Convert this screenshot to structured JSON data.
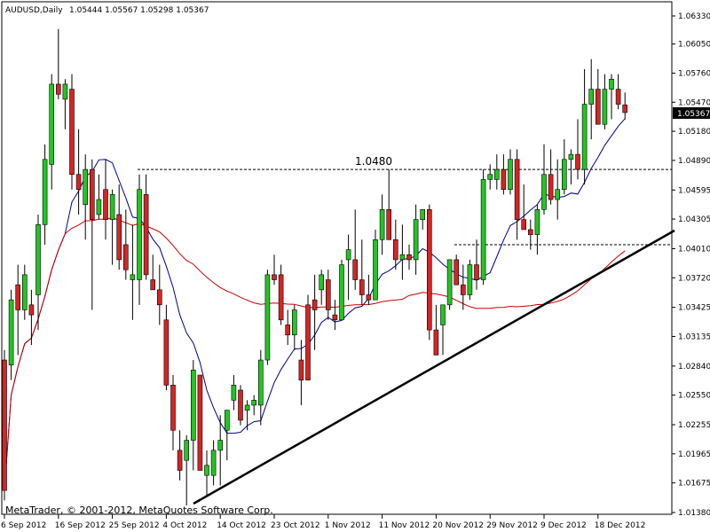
{
  "header": {
    "symbol": "AUDUSD,Daily",
    "ohlc": "1.05444 1.05567 1.05298 1.05367"
  },
  "footer": {
    "copyright": "MetaTrader, © 2001-2012, MetaQuotes Software Corp."
  },
  "colors": {
    "bull_body": "#22c522",
    "bear_body": "#d62424",
    "wick": "#000000",
    "ma_fast": "#00008b",
    "ma_slow": "#c80000",
    "trendline": "#000000",
    "current_price_tag": "#000000"
  },
  "chart_data": {
    "type": "candlestick",
    "y_ticks": [
      "1.06330",
      "1.06050",
      "1.05760",
      "1.05470",
      "1.05180",
      "1.04890",
      "1.04595",
      "1.04305",
      "1.04010",
      "1.03720",
      "1.03425",
      "1.03135",
      "1.02840",
      "1.02550",
      "1.02255",
      "1.01965",
      "1.01675",
      "1.01380"
    ],
    "x_ticks": [
      "6 Sep 2012",
      "16 Sep 2012",
      "25 Sep 2012",
      "4 Oct 2012",
      "14 Oct 2012",
      "23 Oct 2012",
      "1 Nov 2012",
      "11 Nov 2012",
      "20 Nov 2012",
      "29 Nov 2012",
      "9 Dec 2012",
      "18 Dec 2012"
    ],
    "current_price": "1.05367",
    "annotation": "1.0480",
    "ylim": [
      1.0138,
      1.0648
    ],
    "candles": [
      [
        1.029,
        1.03,
        1.015,
        1.016
      ],
      [
        1.0285,
        1.036,
        1.027,
        1.035
      ],
      [
        1.0365,
        1.0385,
        1.0295,
        1.034
      ],
      [
        1.034,
        1.0385,
        1.033,
        1.0375
      ],
      [
        1.0345,
        1.036,
        1.0305,
        1.0335
      ],
      [
        1.0355,
        1.0435,
        1.032,
        1.0425
      ],
      [
        1.0425,
        1.0505,
        1.0405,
        1.049
      ],
      [
        1.0485,
        1.0575,
        1.046,
        1.0565
      ],
      [
        1.0565,
        1.062,
        1.055,
        1.0555
      ],
      [
        1.055,
        1.057,
        1.052,
        1.0565
      ],
      [
        1.056,
        1.0575,
        1.046,
        1.0475
      ],
      [
        1.0475,
        1.052,
        1.0435,
        1.046
      ],
      [
        1.0445,
        1.0495,
        1.041,
        1.048
      ],
      [
        1.048,
        1.049,
        1.034,
        1.043
      ],
      [
        1.0435,
        1.0475,
        1.043,
        1.045
      ],
      [
        1.046,
        1.049,
        1.041,
        1.043
      ],
      [
        1.043,
        1.046,
        1.0385,
        1.0455
      ],
      [
        1.0435,
        1.0465,
        1.038,
        1.039
      ],
      [
        1.0405,
        1.044,
        1.037,
        1.038
      ],
      [
        1.037,
        1.0425,
        1.033,
        1.0375
      ],
      [
        1.037,
        1.0475,
        1.0345,
        1.046
      ],
      [
        1.0455,
        1.0475,
        1.037,
        1.0375
      ],
      [
        1.037,
        1.0395,
        1.036,
        1.036
      ],
      [
        1.036,
        1.0385,
        1.0325,
        1.0345
      ],
      [
        1.033,
        1.0345,
        1.026,
        1.0265
      ],
      [
        1.0265,
        1.0275,
        1.02,
        1.022
      ],
      [
        1.02,
        1.022,
        1.017,
        1.018
      ],
      [
        1.019,
        1.0215,
        1.0145,
        1.021
      ],
      [
        1.021,
        1.029,
        1.018,
        1.028
      ],
      [
        1.0275,
        1.0275,
        1.018,
        1.018
      ],
      [
        1.0175,
        1.02,
        1.0155,
        1.0185
      ],
      [
        1.0175,
        1.021,
        1.0165,
        1.02
      ],
      [
        1.02,
        1.0235,
        1.0165,
        1.021
      ],
      [
        1.022,
        1.024,
        1.019,
        1.024
      ],
      [
        1.025,
        1.0275,
        1.024,
        1.0265
      ],
      [
        1.026,
        1.0265,
        1.0225,
        1.023
      ],
      [
        1.024,
        1.025,
        1.022,
        1.0245
      ],
      [
        1.0245,
        1.0255,
        1.0235,
        1.025
      ],
      [
        1.0245,
        1.03,
        1.0225,
        1.029
      ],
      [
        1.029,
        1.038,
        1.0285,
        1.0375
      ],
      [
        1.0375,
        1.0395,
        1.0365,
        1.037
      ],
      [
        1.0375,
        1.0385,
        1.0325,
        1.033
      ],
      [
        1.0325,
        1.034,
        1.0305,
        1.0315
      ],
      [
        1.0315,
        1.0345,
        1.03,
        1.034
      ],
      [
        1.029,
        1.031,
        1.0245,
        1.027
      ],
      [
        1.0345,
        1.0355,
        1.027,
        1.027
      ],
      [
        1.035,
        1.0375,
        1.03,
        1.034
      ],
      [
        1.036,
        1.038,
        1.0345,
        1.0375
      ],
      [
        1.037,
        1.038,
        1.033,
        1.034
      ],
      [
        1.0335,
        1.035,
        1.032,
        1.033
      ],
      [
        1.033,
        1.039,
        1.033,
        1.0385
      ],
      [
        1.039,
        1.0415,
        1.035,
        1.04
      ],
      [
        1.039,
        1.044,
        1.036,
        1.037
      ],
      [
        1.037,
        1.041,
        1.0345,
        1.0355
      ],
      [
        1.0355,
        1.0375,
        1.0345,
        1.035
      ],
      [
        1.035,
        1.042,
        1.035,
        1.041
      ],
      [
        1.041,
        1.0455,
        1.0395,
        1.044
      ],
      [
        1.044,
        1.048,
        1.041,
        1.041
      ],
      [
        1.041,
        1.043,
        1.038,
        1.039
      ],
      [
        1.039,
        1.0425,
        1.037,
        1.0395
      ],
      [
        1.0395,
        1.0405,
        1.038,
        1.039
      ],
      [
        1.039,
        1.0445,
        1.0375,
        1.043
      ],
      [
        1.043,
        1.044,
        1.042,
        1.044
      ],
      [
        1.044,
        1.0445,
        1.031,
        1.032
      ],
      [
        1.032,
        1.0345,
        1.0295,
        1.0295
      ],
      [
        1.0325,
        1.0345,
        1.0295,
        1.0345
      ],
      [
        1.0345,
        1.039,
        1.034,
        1.039
      ],
      [
        1.039,
        1.0395,
        1.0365,
        1.0365
      ],
      [
        1.0365,
        1.0385,
        1.034,
        1.0355
      ],
      [
        1.0355,
        1.039,
        1.035,
        1.0385
      ],
      [
        1.0385,
        1.041,
        1.036,
        1.037
      ],
      [
        1.037,
        1.048,
        1.0365,
        1.047
      ],
      [
        1.047,
        1.0485,
        1.046,
        1.0475
      ],
      [
        1.047,
        1.0495,
        1.046,
        1.048
      ],
      [
        1.048,
        1.0495,
        1.0455,
        1.046
      ],
      [
        1.046,
        1.05,
        1.0455,
        1.049
      ],
      [
        1.049,
        1.05,
        1.041,
        1.043
      ],
      [
        1.043,
        1.0465,
        1.042,
        1.042
      ],
      [
        1.042,
        1.043,
        1.04,
        1.0415
      ],
      [
        1.0415,
        1.0445,
        1.0395,
        1.044
      ],
      [
        1.044,
        1.0505,
        1.0435,
        1.0475
      ],
      [
        1.0475,
        1.05,
        1.0445,
        1.045
      ],
      [
        1.045,
        1.049,
        1.043,
        1.046
      ],
      [
        1.046,
        1.051,
        1.0455,
        1.049
      ],
      [
        1.049,
        1.05,
        1.0465,
        1.0495
      ],
      [
        1.0495,
        1.053,
        1.047,
        1.048
      ],
      [
        1.048,
        1.058,
        1.0465,
        1.0545
      ],
      [
        1.0545,
        1.059,
        1.051,
        1.056
      ],
      [
        1.056,
        1.058,
        1.0525,
        1.0525
      ],
      [
        1.0525,
        1.0575,
        1.052,
        1.056
      ],
      [
        1.056,
        1.0575,
        1.053,
        1.057
      ],
      [
        1.056,
        1.0575,
        1.054,
        1.0545
      ],
      [
        1.05444,
        1.05567,
        1.05298,
        1.05367
      ]
    ]
  }
}
